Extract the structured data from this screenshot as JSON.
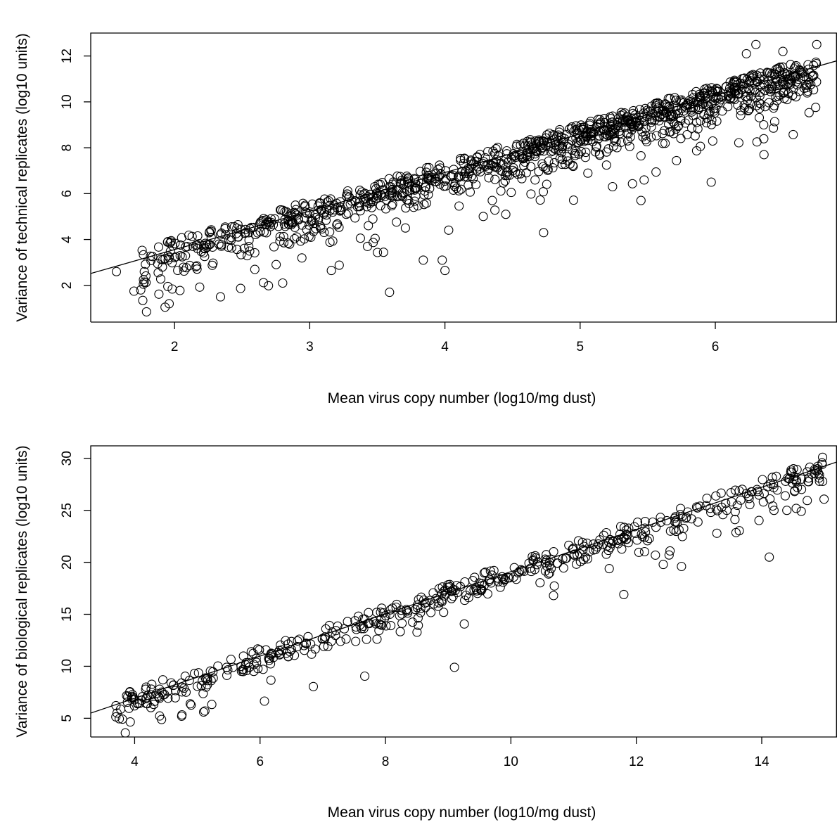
{
  "chart_data": [
    {
      "type": "scatter",
      "title": "",
      "xlabel": "Mean virus copy number (log10/mg dust)",
      "ylabel": "Variance of technical replicates (log10 units)",
      "xlim": [
        1.38,
        6.9
      ],
      "ylim": [
        0.4,
        13.0
      ],
      "x_ticks": [
        2,
        3,
        4,
        5,
        6
      ],
      "y_ticks": [
        2,
        4,
        6,
        8,
        10,
        12
      ],
      "grid": false,
      "point_shape": "open-circle",
      "fit_line": {
        "slope": 1.68,
        "intercept": 0.2
      },
      "points_note": "dense cloud following the fit line, with outliers below",
      "band": {
        "x_range": [
          1.7,
          6.75
        ],
        "spread_above": 0.45,
        "spread_below": 2.4
      },
      "notable_points": [
        {
          "x": 1.57,
          "y": 2.6
        },
        {
          "x": 1.7,
          "y": 1.75
        },
        {
          "x": 1.75,
          "y": 1.8
        },
        {
          "x": 1.77,
          "y": 2.25
        },
        {
          "x": 1.93,
          "y": 1.05
        },
        {
          "x": 1.96,
          "y": 1.2
        },
        {
          "x": 1.95,
          "y": 1.95
        },
        {
          "x": 2.34,
          "y": 1.5
        },
        {
          "x": 3.59,
          "y": 1.7
        },
        {
          "x": 3.16,
          "y": 2.65
        },
        {
          "x": 2.8,
          "y": 2.1
        },
        {
          "x": 3.84,
          "y": 3.1
        },
        {
          "x": 3.98,
          "y": 3.1
        },
        {
          "x": 4.0,
          "y": 2.65
        },
        {
          "x": 4.73,
          "y": 4.3
        },
        {
          "x": 5.45,
          "y": 5.7
        },
        {
          "x": 6.36,
          "y": 7.7
        },
        {
          "x": 5.97,
          "y": 6.5
        },
        {
          "x": 6.53,
          "y": 10.1
        },
        {
          "x": 6.72,
          "y": 11.1
        },
        {
          "x": 6.3,
          "y": 12.5
        },
        {
          "x": 6.75,
          "y": 12.5
        },
        {
          "x": 6.5,
          "y": 12.2
        },
        {
          "x": 6.23,
          "y": 12.1
        },
        {
          "x": 5.24,
          "y": 6.3
        },
        {
          "x": 4.35,
          "y": 5.7
        },
        {
          "x": 4.45,
          "y": 5.1
        }
      ]
    },
    {
      "type": "scatter",
      "title": "",
      "xlabel": "Mean virus copy number (log10/mg dust)",
      "ylabel": "Variance of biological replicates (log10 units)",
      "xlim": [
        3.3,
        15.2
      ],
      "ylim": [
        3.2,
        31.2
      ],
      "x_ticks": [
        4,
        6,
        8,
        10,
        12,
        14
      ],
      "y_ticks": [
        5,
        10,
        15,
        20,
        25,
        30
      ],
      "grid": false,
      "point_shape": "open-circle",
      "fit_line": {
        "slope": 2.03,
        "intercept": -1.2
      },
      "points_note": "cloud following the fit line, with outliers below",
      "band": {
        "x_range": [
          3.7,
          15.0
        ],
        "spread_above": 0.8,
        "spread_below": 3.0
      },
      "notable_points": [
        {
          "x": 3.72,
          "y": 5.5
        },
        {
          "x": 3.93,
          "y": 4.65
        },
        {
          "x": 4.75,
          "y": 5.2
        },
        {
          "x": 5.12,
          "y": 5.7
        },
        {
          "x": 5.1,
          "y": 5.6
        },
        {
          "x": 6.07,
          "y": 6.65
        },
        {
          "x": 6.85,
          "y": 8.05
        },
        {
          "x": 7.67,
          "y": 9.05
        },
        {
          "x": 9.1,
          "y": 9.9
        },
        {
          "x": 10.68,
          "y": 16.8
        },
        {
          "x": 11.8,
          "y": 16.9
        },
        {
          "x": 14.12,
          "y": 20.5
        },
        {
          "x": 12.72,
          "y": 19.6
        },
        {
          "x": 12.43,
          "y": 19.8
        },
        {
          "x": 14.63,
          "y": 24.9
        },
        {
          "x": 14.4,
          "y": 25.0
        },
        {
          "x": 14.97,
          "y": 30.1
        },
        {
          "x": 14.8,
          "y": 28.5
        },
        {
          "x": 14.92,
          "y": 28.4
        },
        {
          "x": 4.45,
          "y": 8.7
        },
        {
          "x": 4.62,
          "y": 8.2
        }
      ]
    }
  ]
}
